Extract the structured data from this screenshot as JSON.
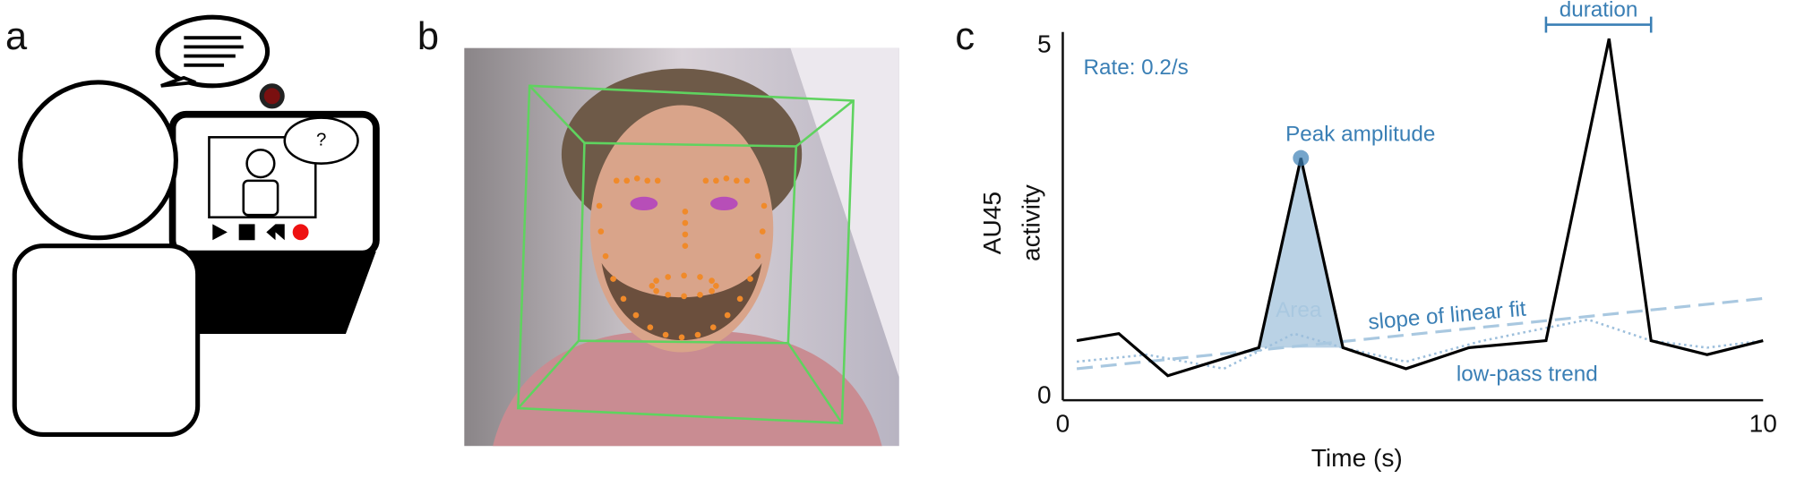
{
  "panels": {
    "a": "a",
    "b": "b",
    "c": "c"
  },
  "panel_a": {
    "question": "?"
  },
  "chart_data": {
    "type": "line",
    "x_label": "Time (s)",
    "y_label": [
      "AU45",
      "activity"
    ],
    "xlim": [
      0,
      10
    ],
    "xticks": [
      0,
      10
    ],
    "ylim": [
      0,
      5
    ],
    "yticks": [
      0,
      5
    ],
    "series": [
      {
        "name": "AU45",
        "color": "#000000",
        "x": [
          0.2,
          0.8,
          1.5,
          2.8,
          3.4,
          4.0,
          4.9,
          5.8,
          6.9,
          7.8,
          8.4,
          9.2,
          10
        ],
        "values": [
          0.8,
          0.9,
          0.3,
          0.7,
          3.4,
          0.7,
          0.4,
          0.7,
          0.8,
          5.1,
          0.8,
          0.6,
          0.8
        ]
      }
    ],
    "linear_fit": {
      "label": "slope of linear fit",
      "color": "#a9c8e0",
      "x": [
        0.2,
        10
      ],
      "values": [
        0.4,
        1.4
      ]
    },
    "low_pass": {
      "label": "low-pass trend",
      "color": "#9dbfdc",
      "x": [
        0.2,
        1.2,
        2.3,
        3.3,
        4.0,
        4.9,
        6.0,
        7.5,
        8.4,
        9.2,
        10
      ],
      "values": [
        0.5,
        0.6,
        0.4,
        0.9,
        0.7,
        0.5,
        0.8,
        1.1,
        0.8,
        0.7,
        0.8
      ]
    },
    "peak": {
      "label": "Peak amplitude"
    },
    "area": {
      "label": "Area"
    },
    "duration": {
      "label": "duration",
      "x": [
        6.9,
        8.4
      ],
      "y": 5.3
    },
    "rate": {
      "label": "Rate: 0.2/s"
    },
    "accent_color": "#3a7fb5"
  }
}
